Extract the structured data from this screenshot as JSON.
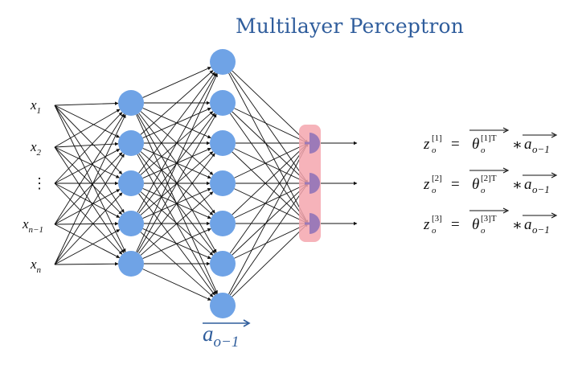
{
  "title": "Multilayer Perceptron",
  "input_labels": [
    {
      "base": "x",
      "sub": "1"
    },
    {
      "base": "x",
      "sub": "2"
    },
    {
      "base": "⋮",
      "sub": ""
    },
    {
      "base": "x",
      "sub": "n−1"
    },
    {
      "base": "x",
      "sub": "n"
    }
  ],
  "layers": {
    "input_count": 5,
    "hidden1_count": 5,
    "hidden2_count": 7,
    "output_count": 3
  },
  "bottom_label": {
    "base": "a",
    "sub": "o−1"
  },
  "equations": [
    {
      "lhs": "z",
      "lhs_sub": "o",
      "lhs_sup": "[1]",
      "theta": "θ",
      "theta_sub": "o",
      "theta_sup": "[1]T",
      "op": "∗",
      "a": "a",
      "a_sub": "o−1"
    },
    {
      "lhs": "z",
      "lhs_sub": "o",
      "lhs_sup": "[2]",
      "theta": "θ",
      "theta_sub": "o",
      "theta_sup": "[2]T",
      "op": "∗",
      "a": "a",
      "a_sub": "o−1"
    },
    {
      "lhs": "z",
      "lhs_sub": "o",
      "lhs_sup": "[3]",
      "theta": "θ",
      "theta_sub": "o",
      "theta_sup": "[3]T",
      "op": "∗",
      "a": "a",
      "a_sub": "o−1"
    }
  ],
  "colors": {
    "node": "#6fa3e6",
    "output_node": "#9c7ab8",
    "highlight": "#f4a6ae",
    "title": "#2f5d9c"
  }
}
